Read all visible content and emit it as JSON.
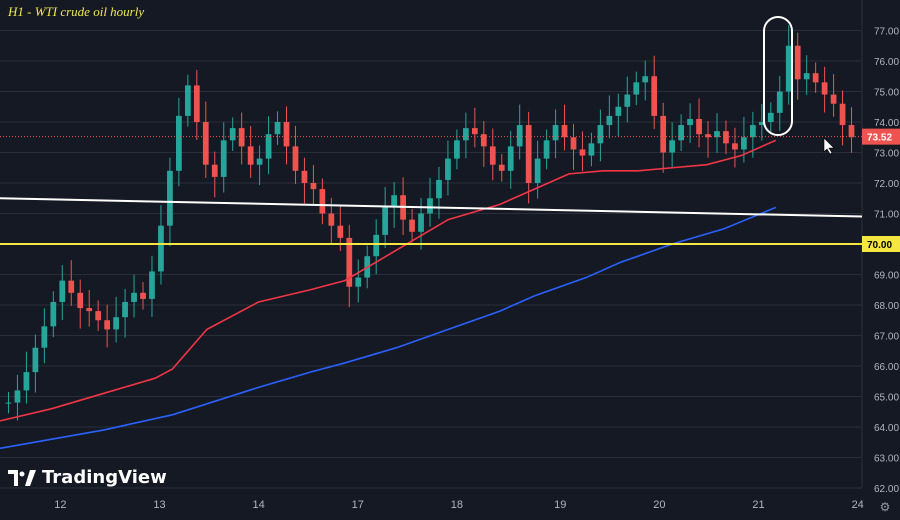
{
  "title": "H1 - WTI crude oil hourly",
  "brand": "TradingView",
  "icons": {
    "logo": "tradingview-logo-icon",
    "settings": "gear-icon",
    "cursor": "mouse-pointer-icon"
  },
  "colors": {
    "background": "#151924",
    "up": "#26a69a",
    "down": "#ef5350",
    "ma_red": "#f23645",
    "ma_blue": "#2962ff",
    "white_line": "#ffffff",
    "yellow_line": "#f5e642"
  },
  "chart_data": {
    "type": "candlestick",
    "title": "H1 - WTI crude oil hourly",
    "ylim": [
      62,
      78
    ],
    "y_ticks": [
      "62.00",
      "63.00",
      "64.00",
      "65.00",
      "66.00",
      "67.00",
      "68.00",
      "69.00",
      "70.00",
      "71.00",
      "72.00",
      "73.00",
      "74.00",
      "75.00",
      "76.00",
      "77.00"
    ],
    "x_labels": [
      "12",
      "13",
      "14",
      "17",
      "18",
      "19",
      "20",
      "21",
      "24"
    ],
    "last_price": "73.52",
    "yellow_level": "70.00",
    "price_path": [
      64.8,
      65.2,
      65.8,
      66.6,
      67.3,
      68.1,
      68.8,
      68.4,
      67.9,
      67.8,
      67.5,
      67.2,
      67.6,
      68.1,
      68.4,
      68.2,
      69.1,
      70.6,
      72.4,
      74.2,
      75.2,
      74.0,
      72.6,
      72.2,
      73.4,
      73.8,
      73.2,
      72.6,
      72.8,
      73.6,
      74.0,
      73.2,
      72.4,
      72.0,
      71.8,
      71.0,
      70.6,
      70.2,
      68.6,
      68.9,
      69.6,
      70.3,
      71.2,
      71.6,
      70.8,
      70.4,
      71.0,
      71.5,
      72.1,
      72.8,
      73.4,
      73.8,
      73.6,
      73.2,
      72.6,
      72.4,
      73.2,
      73.9,
      72.0,
      72.8,
      73.4,
      73.9,
      73.5,
      73.1,
      72.9,
      73.3,
      73.9,
      74.2,
      74.5,
      74.9,
      75.3,
      75.5,
      74.2,
      73.0,
      73.4,
      73.9,
      74.1,
      73.6,
      73.5,
      73.7,
      73.3,
      73.1,
      73.5,
      73.9,
      74.0,
      74.3,
      75.0,
      76.5,
      75.4,
      75.6,
      75.3,
      74.9,
      74.6,
      73.9,
      73.5
    ],
    "series": [
      {
        "name": "",
        "color": "#f23645",
        "values": [
          [
            0,
            64.2
          ],
          [
            0.06,
            64.6
          ],
          [
            0.12,
            65.1
          ],
          [
            0.18,
            65.6
          ],
          [
            0.2,
            65.9
          ],
          [
            0.24,
            67.2
          ],
          [
            0.3,
            68.1
          ],
          [
            0.36,
            68.5
          ],
          [
            0.4,
            68.8
          ],
          [
            0.46,
            69.8
          ],
          [
            0.52,
            70.8
          ],
          [
            0.58,
            71.3
          ],
          [
            0.62,
            71.8
          ],
          [
            0.66,
            72.3
          ],
          [
            0.7,
            72.4
          ],
          [
            0.74,
            72.4
          ],
          [
            0.78,
            72.5
          ],
          [
            0.82,
            72.6
          ],
          [
            0.86,
            72.9
          ],
          [
            0.9,
            73.4
          ]
        ]
      },
      {
        "name": "",
        "color": "#2962ff",
        "values": [
          [
            0,
            63.3
          ],
          [
            0.06,
            63.6
          ],
          [
            0.12,
            63.9
          ],
          [
            0.2,
            64.4
          ],
          [
            0.3,
            65.3
          ],
          [
            0.36,
            65.8
          ],
          [
            0.4,
            66.1
          ],
          [
            0.46,
            66.6
          ],
          [
            0.52,
            67.2
          ],
          [
            0.58,
            67.8
          ],
          [
            0.62,
            68.3
          ],
          [
            0.68,
            68.9
          ],
          [
            0.72,
            69.4
          ],
          [
            0.78,
            70.0
          ],
          [
            0.84,
            70.5
          ],
          [
            0.9,
            71.2
          ]
        ]
      }
    ],
    "lines": [
      {
        "name": "",
        "color": "#ffffff",
        "from": [
          0,
          71.5
        ],
        "to": [
          1,
          70.9
        ]
      },
      {
        "name": "",
        "color": "#f5e642",
        "level": 70.0
      }
    ],
    "annotations": [
      {
        "type": "ellipse-highlight",
        "text": ""
      }
    ]
  }
}
